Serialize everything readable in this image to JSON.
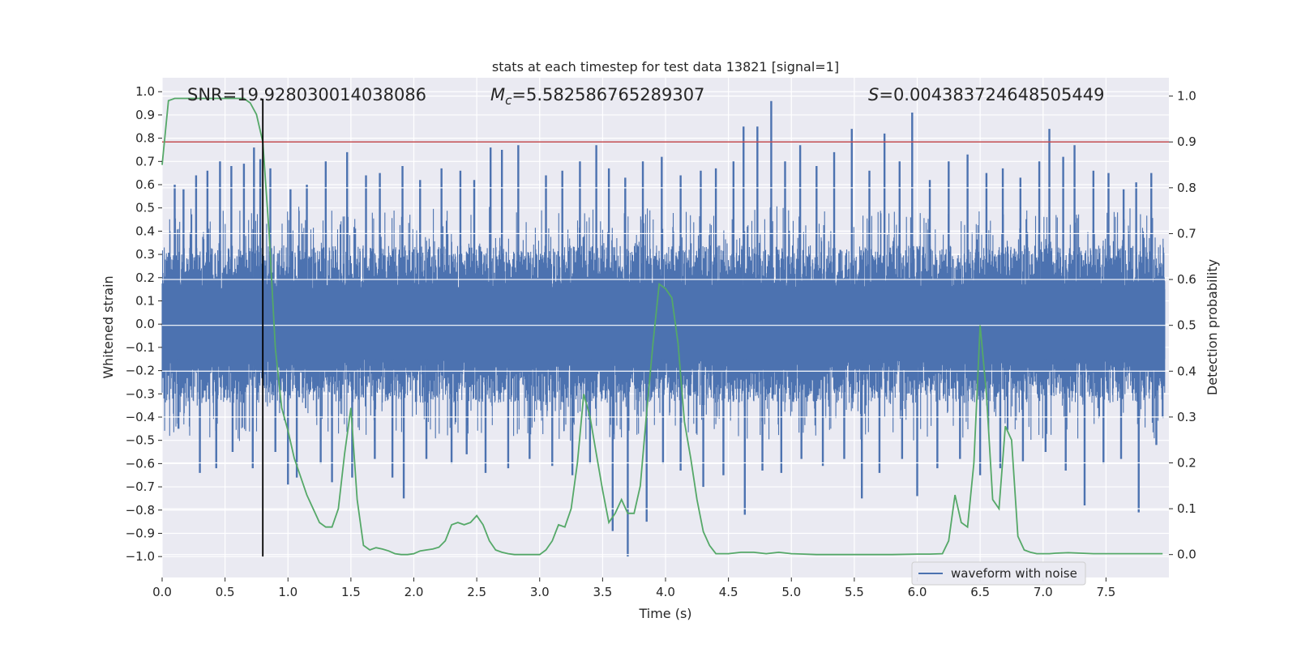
{
  "chart_data": {
    "type": "line",
    "title": "stats at each timestep for test data 13821 [signal=1]",
    "xlabel": "Time (s)",
    "ylabel": "Whitened strain",
    "ylabel_right": "Detection probability",
    "xlim": [
      0.0,
      8.0
    ],
    "ylim": [
      -1.09,
      1.06
    ],
    "ylim_right": [
      -0.05,
      1.04
    ],
    "x_ticks": [
      0.0,
      0.5,
      1.0,
      1.5,
      2.0,
      2.5,
      3.0,
      3.5,
      4.0,
      4.5,
      5.0,
      5.5,
      6.0,
      6.5,
      7.0,
      7.5
    ],
    "x_tick_labels": [
      "0.0",
      "0.5",
      "1.0",
      "1.5",
      "2.0",
      "2.5",
      "3.0",
      "3.5",
      "4.0",
      "4.5",
      "5.0",
      "5.5",
      "6.0",
      "6.5",
      "7.0",
      "7.5"
    ],
    "y_ticks": [
      1.0,
      0.9,
      0.8,
      0.7,
      0.6,
      0.5,
      0.4,
      0.3,
      0.2,
      0.1,
      0.0,
      -0.1,
      -0.2,
      -0.3,
      -0.4,
      -0.5,
      -0.6,
      -0.7,
      -0.8,
      -0.9,
      -1.0
    ],
    "y_tick_labels": [
      "1.0",
      "0.9",
      "0.8",
      "0.7",
      "0.6",
      "0.5",
      "0.4",
      "0.3",
      "0.2",
      "0.1",
      "0.0",
      "−0.1",
      "−0.2",
      "−0.3",
      "−0.4",
      "−0.5",
      "−0.6",
      "−0.7",
      "−0.8",
      "−0.9",
      "−1.0"
    ],
    "y_right_ticks": [
      1.0,
      0.9,
      0.8,
      0.7,
      0.6,
      0.5,
      0.4,
      0.3,
      0.2,
      0.1,
      0.0
    ],
    "y_right_tick_labels": [
      "1.0",
      "0.9",
      "0.8",
      "0.7",
      "0.6",
      "0.5",
      "0.4",
      "0.3",
      "0.2",
      "0.1",
      "0.0"
    ],
    "grid": true,
    "annotations": {
      "snr": "SNR=19.928030014038086",
      "mc_symbol": "M",
      "mc_sub": "c",
      "mc_value": "=5.582586765289307",
      "s_symbol": "S",
      "s_value": "=0.004383724648505449"
    },
    "threshold": {
      "value": 0.9,
      "axis": "right",
      "color": "#c44e52"
    },
    "marker_line": {
      "x": 0.8,
      "y_from": -1.0,
      "y_to": 0.97,
      "color": "#000000"
    },
    "legend": {
      "location": "bottom-right",
      "entries": [
        "waveform with noise"
      ]
    },
    "series": [
      {
        "name": "waveform with noise",
        "axis": "left",
        "color": "#4c72b0",
        "sampling": "dense whitened-strain noise spanning 0–8 s; envelope approx ±0.35 with occasional spikes",
        "spikes": [
          {
            "x": 0.1,
            "y": 0.6
          },
          {
            "x": 0.17,
            "y": 0.58
          },
          {
            "x": 0.27,
            "y": 0.64
          },
          {
            "x": 0.36,
            "y": 0.66
          },
          {
            "x": 0.46,
            "y": 0.7
          },
          {
            "x": 0.55,
            "y": 0.68
          },
          {
            "x": 0.65,
            "y": 0.69
          },
          {
            "x": 0.73,
            "y": 0.76
          },
          {
            "x": 0.78,
            "y": 0.71
          },
          {
            "x": 0.86,
            "y": 0.67
          },
          {
            "x": 1.02,
            "y": 0.58
          },
          {
            "x": 1.15,
            "y": 0.6
          },
          {
            "x": 1.3,
            "y": 0.7
          },
          {
            "x": 1.47,
            "y": 0.74
          },
          {
            "x": 1.62,
            "y": 0.64
          },
          {
            "x": 1.73,
            "y": 0.65
          },
          {
            "x": 1.91,
            "y": 0.68
          },
          {
            "x": 2.05,
            "y": 0.62
          },
          {
            "x": 2.22,
            "y": 0.67
          },
          {
            "x": 2.37,
            "y": 0.66
          },
          {
            "x": 2.48,
            "y": 0.62
          },
          {
            "x": 2.61,
            "y": 0.76
          },
          {
            "x": 2.7,
            "y": 0.75
          },
          {
            "x": 2.83,
            "y": 0.77
          },
          {
            "x": 3.05,
            "y": 0.64
          },
          {
            "x": 3.18,
            "y": 0.66
          },
          {
            "x": 3.32,
            "y": 0.7
          },
          {
            "x": 3.45,
            "y": 0.77
          },
          {
            "x": 3.55,
            "y": 0.67
          },
          {
            "x": 3.68,
            "y": 0.63
          },
          {
            "x": 3.82,
            "y": 0.7
          },
          {
            "x": 3.97,
            "y": 0.72
          },
          {
            "x": 4.12,
            "y": 0.64
          },
          {
            "x": 4.28,
            "y": 0.66
          },
          {
            "x": 4.4,
            "y": 0.67
          },
          {
            "x": 4.54,
            "y": 0.7
          },
          {
            "x": 4.62,
            "y": 0.85
          },
          {
            "x": 4.73,
            "y": 0.85
          },
          {
            "x": 4.84,
            "y": 0.96
          },
          {
            "x": 4.95,
            "y": 0.7
          },
          {
            "x": 5.07,
            "y": 0.77
          },
          {
            "x": 5.2,
            "y": 0.68
          },
          {
            "x": 5.34,
            "y": 0.74
          },
          {
            "x": 5.48,
            "y": 0.84
          },
          {
            "x": 5.62,
            "y": 0.66
          },
          {
            "x": 5.74,
            "y": 0.82
          },
          {
            "x": 5.86,
            "y": 0.7
          },
          {
            "x": 5.96,
            "y": 0.91
          },
          {
            "x": 6.1,
            "y": 0.62
          },
          {
            "x": 6.25,
            "y": 0.7
          },
          {
            "x": 6.4,
            "y": 0.73
          },
          {
            "x": 6.55,
            "y": 0.65
          },
          {
            "x": 6.68,
            "y": 0.67
          },
          {
            "x": 6.82,
            "y": 0.63
          },
          {
            "x": 6.97,
            "y": 0.7
          },
          {
            "x": 7.05,
            "y": 0.84
          },
          {
            "x": 7.16,
            "y": 0.72
          },
          {
            "x": 7.25,
            "y": 0.77
          },
          {
            "x": 7.4,
            "y": 0.66
          },
          {
            "x": 7.52,
            "y": 0.65
          },
          {
            "x": 7.64,
            "y": 0.58
          },
          {
            "x": 7.74,
            "y": 0.61
          },
          {
            "x": 7.86,
            "y": 0.65
          },
          {
            "x": 0.13,
            "y": -0.45
          },
          {
            "x": 0.3,
            "y": -0.64
          },
          {
            "x": 0.43,
            "y": -0.62
          },
          {
            "x": 0.56,
            "y": -0.55
          },
          {
            "x": 0.72,
            "y": -0.62
          },
          {
            "x": 0.9,
            "y": -0.55
          },
          {
            "x": 1.0,
            "y": -0.69
          },
          {
            "x": 1.07,
            "y": -0.66
          },
          {
            "x": 1.26,
            "y": -0.6
          },
          {
            "x": 1.35,
            "y": -0.68
          },
          {
            "x": 1.51,
            "y": -0.66
          },
          {
            "x": 1.69,
            "y": -0.58
          },
          {
            "x": 1.83,
            "y": -0.66
          },
          {
            "x": 1.92,
            "y": -0.75
          },
          {
            "x": 2.1,
            "y": -0.58
          },
          {
            "x": 2.3,
            "y": -0.6
          },
          {
            "x": 2.42,
            "y": -0.56
          },
          {
            "x": 2.57,
            "y": -0.64
          },
          {
            "x": 2.75,
            "y": -0.62
          },
          {
            "x": 2.92,
            "y": -0.58
          },
          {
            "x": 3.1,
            "y": -0.61
          },
          {
            "x": 3.26,
            "y": -0.65
          },
          {
            "x": 3.4,
            "y": -0.6
          },
          {
            "x": 3.58,
            "y": -0.89
          },
          {
            "x": 3.7,
            "y": -1.0
          },
          {
            "x": 3.85,
            "y": -0.85
          },
          {
            "x": 3.98,
            "y": -0.6
          },
          {
            "x": 4.12,
            "y": -0.63
          },
          {
            "x": 4.3,
            "y": -0.7
          },
          {
            "x": 4.46,
            "y": -0.65
          },
          {
            "x": 4.63,
            "y": -0.82
          },
          {
            "x": 4.77,
            "y": -0.63
          },
          {
            "x": 4.92,
            "y": -0.64
          },
          {
            "x": 5.08,
            "y": -0.58
          },
          {
            "x": 5.25,
            "y": -0.61
          },
          {
            "x": 5.42,
            "y": -0.58
          },
          {
            "x": 5.56,
            "y": -0.75
          },
          {
            "x": 5.7,
            "y": -0.64
          },
          {
            "x": 5.88,
            "y": -0.58
          },
          {
            "x": 6.0,
            "y": -0.74
          },
          {
            "x": 6.16,
            "y": -0.62
          },
          {
            "x": 6.34,
            "y": -0.58
          },
          {
            "x": 6.5,
            "y": -0.65
          },
          {
            "x": 6.66,
            "y": -0.62
          },
          {
            "x": 6.84,
            "y": -0.59
          },
          {
            "x": 7.02,
            "y": -0.55
          },
          {
            "x": 7.18,
            "y": -0.63
          },
          {
            "x": 7.33,
            "y": -0.78
          },
          {
            "x": 7.48,
            "y": -0.6
          },
          {
            "x": 7.62,
            "y": -0.58
          },
          {
            "x": 7.76,
            "y": -0.81
          },
          {
            "x": 7.9,
            "y": -0.52
          }
        ]
      },
      {
        "name": "detection probability",
        "axis": "right",
        "color": "#55a868",
        "x": [
          0.0,
          0.05,
          0.1,
          0.15,
          0.2,
          0.3,
          0.4,
          0.5,
          0.6,
          0.65,
          0.7,
          0.75,
          0.8,
          0.85,
          0.9,
          0.95,
          1.0,
          1.05,
          1.1,
          1.15,
          1.2,
          1.25,
          1.3,
          1.35,
          1.4,
          1.45,
          1.5,
          1.55,
          1.6,
          1.65,
          1.7,
          1.75,
          1.8,
          1.85,
          1.9,
          1.95,
          2.0,
          2.05,
          2.1,
          2.15,
          2.2,
          2.25,
          2.3,
          2.35,
          2.4,
          2.45,
          2.5,
          2.55,
          2.6,
          2.65,
          2.7,
          2.75,
          2.8,
          2.9,
          3.0,
          3.05,
          3.1,
          3.15,
          3.2,
          3.25,
          3.3,
          3.35,
          3.4,
          3.45,
          3.5,
          3.55,
          3.6,
          3.65,
          3.7,
          3.75,
          3.8,
          3.85,
          3.9,
          3.95,
          4.0,
          4.05,
          4.1,
          4.15,
          4.2,
          4.25,
          4.3,
          4.35,
          4.4,
          4.45,
          4.5,
          4.6,
          4.7,
          4.8,
          4.9,
          5.0,
          5.1,
          5.2,
          5.4,
          5.6,
          5.8,
          6.0,
          6.1,
          6.2,
          6.25,
          6.3,
          6.35,
          6.4,
          6.45,
          6.5,
          6.55,
          6.6,
          6.65,
          6.7,
          6.75,
          6.8,
          6.85,
          6.9,
          6.95,
          7.0,
          7.05,
          7.1,
          7.2,
          7.4,
          7.6,
          7.8,
          7.95
        ],
        "values": [
          0.85,
          0.99,
          0.995,
          0.995,
          0.995,
          0.995,
          0.995,
          0.995,
          0.995,
          0.995,
          0.985,
          0.96,
          0.9,
          0.7,
          0.45,
          0.32,
          0.27,
          0.21,
          0.17,
          0.13,
          0.1,
          0.07,
          0.06,
          0.06,
          0.1,
          0.22,
          0.32,
          0.12,
          0.02,
          0.01,
          0.015,
          0.012,
          0.008,
          0.002,
          0.0,
          0.0,
          0.002,
          0.008,
          0.01,
          0.012,
          0.016,
          0.03,
          0.065,
          0.07,
          0.065,
          0.07,
          0.085,
          0.065,
          0.03,
          0.01,
          0.005,
          0.002,
          0.0,
          0.0,
          0.0,
          0.01,
          0.03,
          0.065,
          0.06,
          0.1,
          0.2,
          0.35,
          0.3,
          0.22,
          0.14,
          0.07,
          0.09,
          0.12,
          0.09,
          0.09,
          0.15,
          0.31,
          0.46,
          0.59,
          0.58,
          0.56,
          0.46,
          0.29,
          0.21,
          0.12,
          0.05,
          0.02,
          0.002,
          0.002,
          0.002,
          0.005,
          0.005,
          0.002,
          0.005,
          0.002,
          0.001,
          0.0,
          0.0,
          0.0,
          0.0,
          0.001,
          0.001,
          0.002,
          0.03,
          0.13,
          0.07,
          0.06,
          0.2,
          0.5,
          0.35,
          0.12,
          0.1,
          0.28,
          0.25,
          0.04,
          0.01,
          0.005,
          0.002,
          0.002,
          0.002,
          0.003,
          0.004,
          0.002,
          0.002,
          0.002,
          0.002
        ]
      }
    ]
  }
}
